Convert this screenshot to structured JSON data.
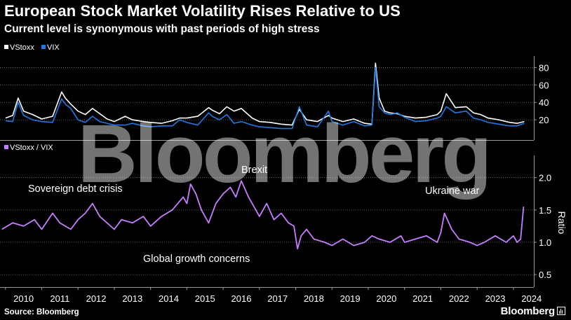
{
  "header": {
    "title": "European Stock Market Volatility Rises Relative to US",
    "subtitle": "Current level is synonymous with past periods of high stress"
  },
  "footer": {
    "source": "Source: Bloomberg",
    "brand": "Bloomberg"
  },
  "watermark": "Bloomberg",
  "colors": {
    "vstoxx": "#ffffff",
    "vix": "#1f7ae0",
    "ratio": "#c77dff",
    "background": "#000000",
    "text": "#ffffff",
    "grid": "#7a7a7a"
  },
  "chart_data": [
    {
      "type": "line",
      "legend_position": "top-left",
      "grid": true,
      "ylim": [
        0,
        90
      ],
      "yticks": [
        20,
        40,
        60,
        80
      ],
      "y_axis_side": "right",
      "x_range": [
        2009.85,
        2024.35
      ],
      "series": [
        {
          "name": "VStoxx",
          "color": "#ffffff",
          "x": [
            2010.0,
            2010.2,
            2010.35,
            2010.5,
            2010.75,
            2011.0,
            2011.3,
            2011.55,
            2011.65,
            2011.8,
            2012.0,
            2012.2,
            2012.4,
            2012.6,
            2012.8,
            2013.0,
            2013.3,
            2013.5,
            2013.8,
            2014.0,
            2014.3,
            2014.6,
            2014.8,
            2015.0,
            2015.3,
            2015.6,
            2015.7,
            2015.9,
            2016.1,
            2016.3,
            2016.5,
            2016.8,
            2017.0,
            2017.3,
            2017.6,
            2017.9,
            2018.1,
            2018.3,
            2018.6,
            2018.9,
            2019.0,
            2019.3,
            2019.6,
            2019.9,
            2020.1,
            2020.2,
            2020.3,
            2020.45,
            2020.6,
            2020.8,
            2021.0,
            2021.3,
            2021.6,
            2021.9,
            2022.0,
            2022.15,
            2022.4,
            2022.7,
            2022.9,
            2023.1,
            2023.3,
            2023.6,
            2023.9,
            2024.1,
            2024.3
          ],
          "values": [
            22,
            25,
            45,
            30,
            26,
            21,
            24,
            52,
            45,
            38,
            30,
            26,
            33,
            27,
            21,
            18,
            24,
            20,
            18,
            17,
            16,
            19,
            22,
            22,
            24,
            34,
            31,
            27,
            35,
            30,
            33,
            22,
            18,
            17,
            15,
            14,
            32,
            20,
            18,
            25,
            22,
            18,
            21,
            16,
            15,
            85,
            45,
            30,
            28,
            27,
            24,
            22,
            23,
            26,
            30,
            50,
            34,
            35,
            28,
            26,
            22,
            20,
            17,
            16,
            18
          ]
        },
        {
          "name": "VIX",
          "color": "#1f7ae0",
          "x": [
            2010.0,
            2010.2,
            2010.35,
            2010.5,
            2010.75,
            2011.0,
            2011.3,
            2011.55,
            2011.65,
            2011.8,
            2012.0,
            2012.2,
            2012.4,
            2012.6,
            2012.8,
            2013.0,
            2013.3,
            2013.5,
            2013.8,
            2014.0,
            2014.3,
            2014.6,
            2014.8,
            2015.0,
            2015.3,
            2015.6,
            2015.7,
            2015.9,
            2016.1,
            2016.3,
            2016.5,
            2016.8,
            2017.0,
            2017.3,
            2017.6,
            2017.9,
            2018.1,
            2018.3,
            2018.6,
            2018.9,
            2019.0,
            2019.3,
            2019.6,
            2019.9,
            2020.1,
            2020.2,
            2020.3,
            2020.45,
            2020.6,
            2020.8,
            2021.0,
            2021.3,
            2021.6,
            2021.9,
            2022.0,
            2022.15,
            2022.4,
            2022.7,
            2022.9,
            2023.1,
            2023.3,
            2023.6,
            2023.9,
            2024.1,
            2024.3
          ],
          "values": [
            19,
            18,
            40,
            25,
            20,
            18,
            17,
            44,
            38,
            33,
            20,
            17,
            24,
            18,
            16,
            14,
            14,
            16,
            13,
            12,
            13,
            13,
            20,
            17,
            14,
            28,
            24,
            20,
            26,
            16,
            18,
            14,
            12,
            11,
            10,
            10,
            35,
            14,
            12,
            30,
            18,
            14,
            18,
            13,
            14,
            80,
            35,
            28,
            26,
            28,
            23,
            18,
            19,
            22,
            24,
            35,
            28,
            30,
            22,
            20,
            17,
            15,
            13,
            13,
            16
          ]
        }
      ]
    },
    {
      "type": "line",
      "legend_position": "top-left",
      "grid": true,
      "ylabel": "Ratio",
      "ylim": [
        0.35,
        2.3
      ],
      "yticks": [
        0.5,
        1.0,
        1.5,
        2.0
      ],
      "y_axis_side": "right",
      "x_range": [
        2009.85,
        2024.35
      ],
      "x_tick_labels": [
        "2010",
        "2011",
        "2012",
        "2013",
        "2014",
        "2015",
        "2016",
        "2017",
        "2018",
        "2019",
        "2020",
        "2021",
        "2022",
        "2023",
        "2024"
      ],
      "annotations": [
        "Sovereign debt crisis",
        "Brexit",
        "Ukraine war",
        "Global growth concerns"
      ],
      "series": [
        {
          "name": "VStoxx / VIX",
          "color": "#c77dff",
          "x": [
            2009.9,
            2010.2,
            2010.5,
            2010.8,
            2011.0,
            2011.3,
            2011.5,
            2011.8,
            2012.0,
            2012.2,
            2012.4,
            2012.6,
            2012.8,
            2013.0,
            2013.2,
            2013.5,
            2013.8,
            2014.0,
            2014.3,
            2014.6,
            2014.9,
            2015.0,
            2015.1,
            2015.25,
            2015.4,
            2015.6,
            2015.8,
            2016.0,
            2016.2,
            2016.35,
            2016.5,
            2016.7,
            2016.9,
            2017.0,
            2017.2,
            2017.4,
            2017.6,
            2017.8,
            2017.95,
            2018.05,
            2018.15,
            2018.3,
            2018.5,
            2018.8,
            2019.0,
            2019.3,
            2019.6,
            2019.9,
            2020.1,
            2020.3,
            2020.6,
            2020.9,
            2021.0,
            2021.3,
            2021.6,
            2021.9,
            2022.0,
            2022.1,
            2022.3,
            2022.5,
            2022.8,
            2023.0,
            2023.2,
            2023.5,
            2023.8,
            2024.0,
            2024.1,
            2024.2,
            2024.28
          ],
          "values": [
            1.2,
            1.3,
            1.25,
            1.35,
            1.2,
            1.45,
            1.3,
            1.2,
            1.35,
            1.45,
            1.6,
            1.4,
            1.3,
            1.2,
            1.35,
            1.3,
            1.4,
            1.25,
            1.4,
            1.5,
            1.7,
            1.6,
            1.9,
            1.75,
            1.5,
            1.3,
            1.6,
            1.75,
            1.85,
            1.7,
            1.95,
            1.7,
            1.5,
            1.4,
            1.6,
            1.35,
            1.45,
            1.3,
            1.25,
            0.9,
            1.1,
            1.2,
            1.05,
            1.0,
            0.95,
            1.05,
            0.95,
            1.0,
            1.1,
            1.05,
            1.0,
            1.1,
            1.0,
            1.05,
            1.1,
            1.0,
            1.15,
            1.45,
            1.2,
            1.05,
            1.0,
            0.95,
            1.0,
            1.1,
            1.0,
            1.1,
            1.0,
            1.05,
            1.55
          ]
        }
      ]
    }
  ]
}
